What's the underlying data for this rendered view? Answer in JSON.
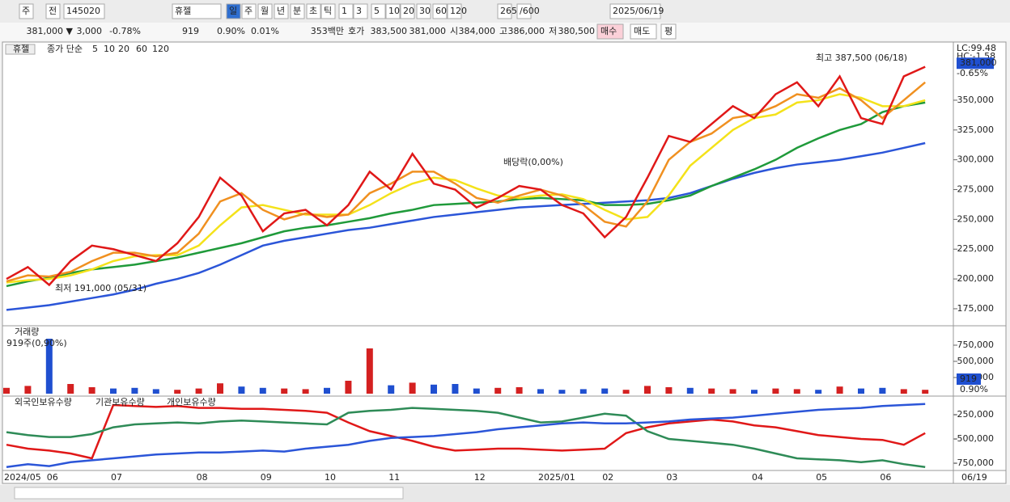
{
  "toolbar": {
    "items": [
      "주",
      "전",
      "145020",
      "휴젤",
      "일",
      "주",
      "월",
      "년",
      "분",
      "초",
      "틱",
      "1",
      "3",
      "5",
      "10",
      "20",
      "30",
      "60",
      "120",
      "265",
      "/600",
      "2025/06/19"
    ]
  },
  "quote_bar": {
    "items": [
      "381,000 ▼",
      "3,000",
      "-0.78%",
      "919",
      "0.90%",
      "0.01%",
      "353백만",
      "호가",
      "383,500",
      "381,000",
      "시",
      "384,000",
      "고",
      "386,000",
      "저",
      "380,500",
      "매수",
      "매도",
      "평"
    ]
  },
  "chart_data": [
    {
      "type": "line",
      "stock": "휴젤",
      "title": "종가 단순",
      "last_date": "06/19",
      "categories": [
        "2024/05",
        null,
        "06",
        null,
        null,
        "07",
        null,
        null,
        null,
        "08",
        null,
        null,
        "09",
        null,
        null,
        "10",
        null,
        null,
        "11",
        null,
        null,
        null,
        "12",
        null,
        null,
        "2025/01",
        null,
        null,
        "02",
        null,
        null,
        "03",
        null,
        null,
        null,
        "04",
        null,
        null,
        "05",
        null,
        null,
        "06",
        null,
        null
      ],
      "ylim": [
        161400,
        398800
      ],
      "yticks": [
        {
          "value": 175000,
          "label": "175,000"
        },
        {
          "value": 200000,
          "label": "200,000"
        },
        {
          "value": 225000,
          "label": "225,000"
        },
        {
          "value": 250000,
          "label": "250,000"
        },
        {
          "value": 275000,
          "label": "275,000"
        },
        {
          "value": 300000,
          "label": "300,000"
        },
        {
          "value": 325000,
          "label": "325,000"
        },
        {
          "value": 350000,
          "label": "350,000"
        }
      ],
      "series": [
        {
          "name": "120",
          "color": "#2b55d8",
          "values": [
            174000,
            176000,
            178000,
            181000,
            184000,
            187000,
            191000,
            196000,
            200000,
            205000,
            212000,
            220000,
            228000,
            232000,
            235000,
            238000,
            241000,
            243000,
            246000,
            249000,
            252000,
            254000,
            256000,
            258000,
            260000,
            261000,
            262000,
            263000,
            264000,
            265000,
            266000,
            268000,
            272000,
            278000,
            284000,
            289000,
            293000,
            296000,
            298000,
            300000,
            303000,
            306000,
            310000,
            314000
          ]
        },
        {
          "name": "60",
          "color": "#1f9a3a",
          "values": [
            194000,
            198000,
            201000,
            205000,
            208000,
            210000,
            212000,
            215000,
            218000,
            222000,
            226000,
            230000,
            235000,
            240000,
            243000,
            245000,
            248000,
            251000,
            255000,
            258000,
            262000,
            263000,
            264000,
            265000,
            267000,
            268000,
            267000,
            266000,
            262000,
            262000,
            263000,
            266000,
            270000,
            278000,
            285000,
            292000,
            300000,
            310000,
            318000,
            325000,
            330000,
            340000,
            345000,
            348000
          ]
        },
        {
          "name": "20",
          "color": "#f4e21a",
          "values": [
            197000,
            199000,
            200000,
            203000,
            208000,
            215000,
            219000,
            220000,
            220000,
            228000,
            245000,
            260000,
            262000,
            258000,
            254000,
            254000,
            254000,
            262000,
            272000,
            280000,
            285000,
            283000,
            276000,
            270000,
            268000,
            270000,
            271000,
            267000,
            258000,
            250000,
            252000,
            270000,
            295000,
            310000,
            325000,
            335000,
            338000,
            348000,
            350000,
            355000,
            352000,
            345000,
            345000,
            350000
          ]
        },
        {
          "name": "10",
          "color": "#f09020",
          "values": [
            198000,
            203000,
            202000,
            206000,
            215000,
            222000,
            222000,
            219000,
            222000,
            238000,
            265000,
            272000,
            258000,
            250000,
            255000,
            252000,
            254000,
            272000,
            280000,
            290000,
            290000,
            280000,
            268000,
            264000,
            270000,
            275000,
            270000,
            262000,
            248000,
            244000,
            265000,
            300000,
            315000,
            322000,
            335000,
            338000,
            345000,
            355000,
            352000,
            360000,
            350000,
            335000,
            350000,
            365000
          ]
        },
        {
          "name": "5",
          "color": "#e01818",
          "values": [
            200000,
            210000,
            195000,
            215000,
            228000,
            225000,
            220000,
            215000,
            230000,
            252000,
            285000,
            270000,
            240000,
            255000,
            258000,
            245000,
            262000,
            290000,
            275000,
            305000,
            280000,
            275000,
            260000,
            268000,
            278000,
            275000,
            262000,
            255000,
            235000,
            252000,
            285000,
            320000,
            315000,
            330000,
            345000,
            335000,
            355000,
            365000,
            345000,
            370000,
            335000,
            330000,
            370000,
            378000
          ]
        }
      ],
      "right_labels": [
        "LC:99.48",
        "HC:-1.58",
        "-0.65%"
      ],
      "last_price": {
        "value": 381000,
        "label": "381,000"
      },
      "annotations": [
        "최고 387,500 (06/18)",
        "최저 191,000 (05/31)",
        "배당락(0,00%)"
      ]
    },
    {
      "type": "bar",
      "title": "거래량",
      "subtitle": "919주(0,90%)",
      "up_color": "#d42020",
      "down_color": "#1f4fd0",
      "ylim": [
        -37500,
        1037500
      ],
      "yticks": [
        {
          "value": 250000,
          "label": "250,000"
        },
        {
          "value": 500000,
          "label": "500,000"
        },
        {
          "value": 750000,
          "label": "750,000"
        }
      ],
      "values": [
        90000,
        120000,
        850000,
        150000,
        100000,
        80000,
        90000,
        70000,
        60000,
        80000,
        160000,
        110000,
        90000,
        80000,
        70000,
        90000,
        200000,
        700000,
        130000,
        170000,
        140000,
        150000,
        80000,
        90000,
        100000,
        70000,
        60000,
        70000,
        80000,
        60000,
        120000,
        100000,
        90000,
        80000,
        70000,
        60000,
        80000,
        70000,
        60000,
        110000,
        80000,
        90000,
        70000,
        60000
      ],
      "last_labels": [
        "919",
        "0.90%"
      ]
    },
    {
      "type": "line",
      "ylim": [
        -825000,
        -75000
      ],
      "yticks": [
        {
          "value": -250000,
          "label": "-250,000"
        },
        {
          "value": -500000,
          "label": "-500,000"
        },
        {
          "value": -750000,
          "label": "-750,000"
        }
      ],
      "series": [
        {
          "name": "외국인보유수량",
          "color": "#e01818",
          "values": [
            -560000,
            -600000,
            -620000,
            -650000,
            -700000,
            -150000,
            -160000,
            -170000,
            -160000,
            -180000,
            -180000,
            -190000,
            -190000,
            -200000,
            -210000,
            -230000,
            -330000,
            -420000,
            -470000,
            -520000,
            -580000,
            -620000,
            -610000,
            -600000,
            -600000,
            -610000,
            -620000,
            -610000,
            -600000,
            -440000,
            -380000,
            -340000,
            -320000,
            -300000,
            -320000,
            -360000,
            -380000,
            -420000,
            -460000,
            -480000,
            -500000,
            -510000,
            -560000,
            -440000
          ]
        },
        {
          "name": "기관보유수량",
          "color": "#2e8b57",
          "values": [
            -430000,
            -460000,
            -480000,
            -480000,
            -450000,
            -380000,
            -350000,
            -340000,
            -330000,
            -340000,
            -320000,
            -310000,
            -320000,
            -330000,
            -340000,
            -350000,
            -230000,
            -210000,
            -200000,
            -180000,
            -190000,
            -200000,
            -210000,
            -230000,
            -280000,
            -330000,
            -320000,
            -280000,
            -240000,
            -260000,
            -420000,
            -500000,
            -520000,
            -540000,
            -560000,
            -600000,
            -650000,
            -700000,
            -710000,
            -720000,
            -740000,
            -720000,
            -760000,
            -790000
          ]
        },
        {
          "name": "개인보유수량",
          "color": "#2b55d8",
          "values": [
            -790000,
            -760000,
            -780000,
            -740000,
            -720000,
            -700000,
            -680000,
            -660000,
            -650000,
            -640000,
            -640000,
            -630000,
            -620000,
            -630000,
            -600000,
            -580000,
            -560000,
            -520000,
            -490000,
            -480000,
            -470000,
            -450000,
            -430000,
            -400000,
            -380000,
            -360000,
            -340000,
            -330000,
            -340000,
            -340000,
            -330000,
            -320000,
            -300000,
            -290000,
            -280000,
            -260000,
            -240000,
            -220000,
            -200000,
            -190000,
            -180000,
            -160000,
            -150000,
            -140000
          ]
        }
      ]
    }
  ]
}
